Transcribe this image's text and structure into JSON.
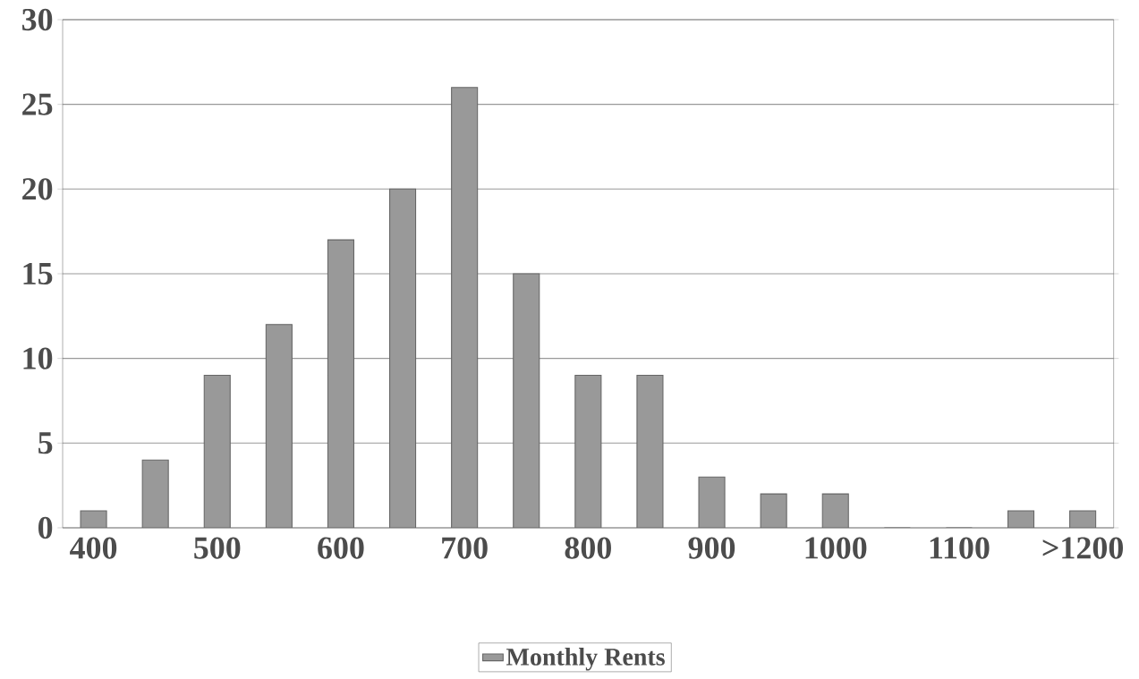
{
  "chart_data": {
    "type": "bar",
    "categories": [
      "400",
      null,
      "500",
      null,
      "600",
      null,
      "700",
      null,
      "800",
      null,
      "900",
      null,
      "1000",
      null,
      "1100",
      null,
      ">1200"
    ],
    "series": [
      {
        "name": "Monthly Rents",
        "color": "#999999",
        "values": [
          1,
          4,
          9,
          12,
          17,
          20,
          26,
          15,
          9,
          9,
          3,
          2,
          2,
          0,
          0,
          1,
          1
        ]
      }
    ],
    "ylim": [
      0,
      30
    ],
    "yticks": [
      0,
      5,
      10,
      15,
      20,
      25,
      30
    ],
    "grid": "y",
    "legend": "bottom"
  }
}
